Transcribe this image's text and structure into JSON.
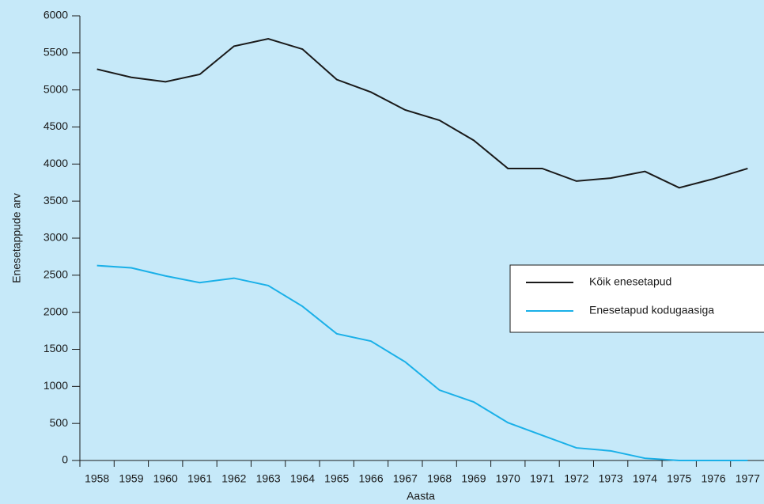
{
  "chart_data": {
    "type": "line",
    "x_label": "Aasta",
    "y_label": "Enesetappude arv",
    "categories": [
      "1958",
      "1959",
      "1960",
      "1961",
      "1962",
      "1963",
      "1964",
      "1965",
      "1966",
      "1967",
      "1968",
      "1969",
      "1970",
      "1971",
      "1972",
      "1973",
      "1974",
      "1975",
      "1976",
      "1977"
    ],
    "series": [
      {
        "name": "Kõik enesetapud",
        "color": "#1a1a1a",
        "values": [
          5280,
          5170,
          5110,
          5210,
          5590,
          5690,
          5550,
          5140,
          4970,
          4730,
          4590,
          4320,
          3940,
          3940,
          3770,
          3810,
          3900,
          3680,
          3800,
          3940
        ]
      },
      {
        "name": "Enesetapud kodugaasiga",
        "color": "#1ab0e8",
        "values": [
          2630,
          2600,
          2490,
          2400,
          2460,
          2360,
          2080,
          1710,
          1610,
          1330,
          950,
          790,
          510,
          340,
          170,
          130,
          30,
          0,
          0,
          0
        ]
      }
    ],
    "ylim": [
      0,
      6000
    ],
    "yticks": [
      0,
      500,
      1000,
      1500,
      2000,
      2500,
      3000,
      3500,
      4000,
      4500,
      5000,
      5500,
      6000
    ],
    "legend": "right"
  }
}
